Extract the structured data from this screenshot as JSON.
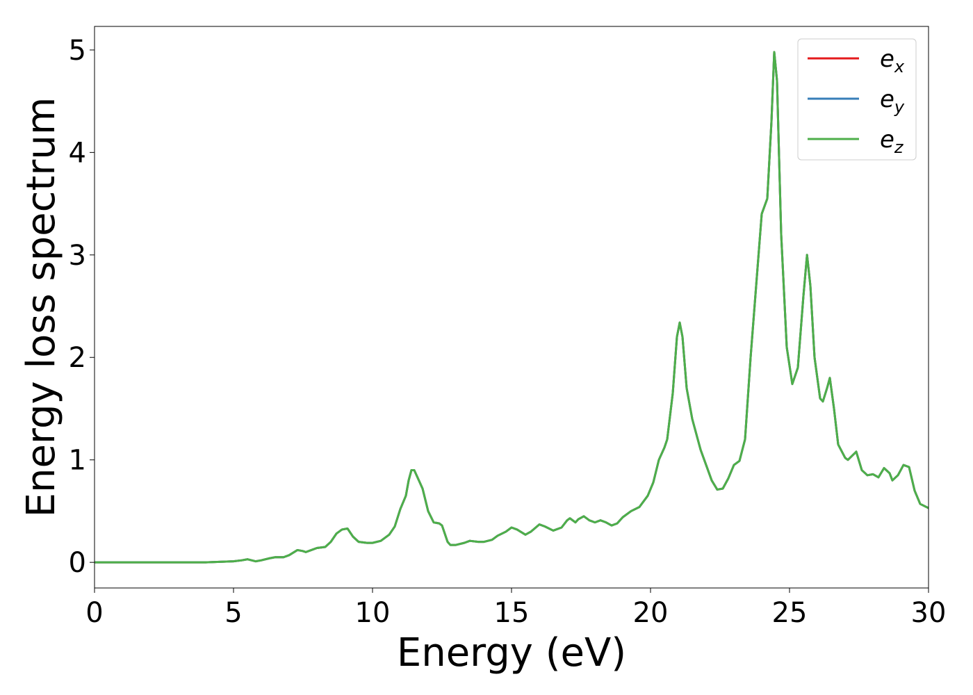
{
  "chart_data": {
    "type": "line",
    "xlabel": "Energy (eV)",
    "ylabel": "Energy loss spectrum",
    "xlim": [
      0,
      30
    ],
    "ylim": [
      -0.25,
      5.23
    ],
    "xticks": [
      0,
      5,
      10,
      15,
      20,
      25,
      30
    ],
    "yticks": [
      0,
      1,
      2,
      3,
      4,
      5
    ],
    "grid": false,
    "legend": "upper right",
    "x": [
      0,
      1,
      2,
      3,
      4,
      5,
      5.3,
      5.5,
      5.8,
      6.0,
      6.3,
      6.5,
      6.8,
      7.0,
      7.3,
      7.5,
      7.6,
      7.8,
      8.0,
      8.3,
      8.5,
      8.7,
      8.9,
      9.1,
      9.3,
      9.5,
      9.8,
      10.0,
      10.3,
      10.6,
      10.8,
      11.0,
      11.2,
      11.3,
      11.4,
      11.5,
      11.6,
      11.8,
      12.0,
      12.2,
      12.4,
      12.5,
      12.7,
      12.8,
      13.0,
      13.3,
      13.5,
      13.8,
      14.0,
      14.3,
      14.5,
      14.8,
      15.0,
      15.2,
      15.5,
      15.7,
      16.0,
      16.2,
      16.5,
      16.8,
      17.0,
      17.1,
      17.3,
      17.4,
      17.6,
      17.8,
      18.0,
      18.2,
      18.4,
      18.6,
      18.8,
      19.0,
      19.3,
      19.6,
      19.9,
      20.1,
      20.3,
      20.5,
      20.6,
      20.8,
      20.95,
      21.05,
      21.15,
      21.3,
      21.5,
      21.8,
      22.0,
      22.2,
      22.4,
      22.6,
      22.8,
      23.0,
      23.2,
      23.4,
      23.6,
      23.8,
      24.0,
      24.2,
      24.35,
      24.45,
      24.55,
      24.7,
      24.9,
      25.1,
      25.3,
      25.5,
      25.63,
      25.75,
      25.9,
      26.1,
      26.2,
      26.35,
      26.45,
      26.6,
      26.75,
      27.0,
      27.1,
      27.4,
      27.6,
      27.8,
      28.0,
      28.2,
      28.4,
      28.6,
      28.7,
      28.9,
      29.1,
      29.3,
      29.5,
      29.7,
      30.0
    ],
    "series": [
      {
        "name": "ex",
        "color": "#e41a1c",
        "values": [
          0,
          0,
          0,
          0,
          0,
          0.01,
          0.02,
          0.03,
          0.01,
          0.02,
          0.04,
          0.05,
          0.05,
          0.07,
          0.12,
          0.11,
          0.1,
          0.12,
          0.14,
          0.15,
          0.2,
          0.28,
          0.32,
          0.33,
          0.25,
          0.2,
          0.19,
          0.19,
          0.21,
          0.27,
          0.35,
          0.52,
          0.65,
          0.8,
          0.9,
          0.9,
          0.84,
          0.72,
          0.5,
          0.39,
          0.38,
          0.36,
          0.2,
          0.17,
          0.17,
          0.19,
          0.21,
          0.2,
          0.2,
          0.22,
          0.26,
          0.3,
          0.34,
          0.32,
          0.27,
          0.3,
          0.37,
          0.35,
          0.31,
          0.34,
          0.41,
          0.43,
          0.39,
          0.42,
          0.45,
          0.41,
          0.39,
          0.41,
          0.39,
          0.36,
          0.38,
          0.44,
          0.5,
          0.54,
          0.65,
          0.78,
          1.0,
          1.12,
          1.2,
          1.65,
          2.2,
          2.34,
          2.2,
          1.7,
          1.4,
          1.1,
          0.95,
          0.8,
          0.71,
          0.72,
          0.82,
          0.95,
          0.99,
          1.2,
          2.0,
          2.7,
          3.4,
          3.55,
          4.3,
          4.98,
          4.7,
          3.2,
          2.1,
          1.74,
          1.9,
          2.6,
          3.0,
          2.7,
          2.0,
          1.6,
          1.57,
          1.7,
          1.8,
          1.5,
          1.15,
          1.02,
          1.0,
          1.08,
          0.9,
          0.85,
          0.86,
          0.83,
          0.92,
          0.87,
          0.8,
          0.85,
          0.95,
          0.93,
          0.7,
          0.57,
          0.53
        ]
      },
      {
        "name": "ey",
        "color": "#377eb8",
        "values": [
          0,
          0,
          0,
          0,
          0,
          0.01,
          0.02,
          0.03,
          0.01,
          0.02,
          0.04,
          0.05,
          0.05,
          0.07,
          0.12,
          0.11,
          0.1,
          0.12,
          0.14,
          0.15,
          0.2,
          0.28,
          0.32,
          0.33,
          0.25,
          0.2,
          0.19,
          0.19,
          0.21,
          0.27,
          0.35,
          0.52,
          0.65,
          0.8,
          0.9,
          0.9,
          0.84,
          0.72,
          0.5,
          0.39,
          0.38,
          0.36,
          0.2,
          0.17,
          0.17,
          0.19,
          0.21,
          0.2,
          0.2,
          0.22,
          0.26,
          0.3,
          0.34,
          0.32,
          0.27,
          0.3,
          0.37,
          0.35,
          0.31,
          0.34,
          0.41,
          0.43,
          0.39,
          0.42,
          0.45,
          0.41,
          0.39,
          0.41,
          0.39,
          0.36,
          0.38,
          0.44,
          0.5,
          0.54,
          0.65,
          0.78,
          1.0,
          1.12,
          1.2,
          1.65,
          2.2,
          2.34,
          2.2,
          1.7,
          1.4,
          1.1,
          0.95,
          0.8,
          0.71,
          0.72,
          0.82,
          0.95,
          0.99,
          1.2,
          2.0,
          2.7,
          3.4,
          3.55,
          4.3,
          4.98,
          4.7,
          3.2,
          2.1,
          1.74,
          1.9,
          2.6,
          3.0,
          2.7,
          2.0,
          1.6,
          1.57,
          1.7,
          1.8,
          1.5,
          1.15,
          1.02,
          1.0,
          1.08,
          0.9,
          0.85,
          0.86,
          0.83,
          0.92,
          0.87,
          0.8,
          0.85,
          0.95,
          0.93,
          0.7,
          0.57,
          0.53
        ]
      },
      {
        "name": "ez",
        "color": "#4daf4a",
        "values": [
          0,
          0,
          0,
          0,
          0,
          0.01,
          0.02,
          0.03,
          0.01,
          0.02,
          0.04,
          0.05,
          0.05,
          0.07,
          0.12,
          0.11,
          0.1,
          0.12,
          0.14,
          0.15,
          0.2,
          0.28,
          0.32,
          0.33,
          0.25,
          0.2,
          0.19,
          0.19,
          0.21,
          0.27,
          0.35,
          0.52,
          0.65,
          0.8,
          0.9,
          0.9,
          0.84,
          0.72,
          0.5,
          0.39,
          0.38,
          0.36,
          0.2,
          0.17,
          0.17,
          0.19,
          0.21,
          0.2,
          0.2,
          0.22,
          0.26,
          0.3,
          0.34,
          0.32,
          0.27,
          0.3,
          0.37,
          0.35,
          0.31,
          0.34,
          0.41,
          0.43,
          0.39,
          0.42,
          0.45,
          0.41,
          0.39,
          0.41,
          0.39,
          0.36,
          0.38,
          0.44,
          0.5,
          0.54,
          0.65,
          0.78,
          1.0,
          1.12,
          1.2,
          1.65,
          2.2,
          2.34,
          2.2,
          1.7,
          1.4,
          1.1,
          0.95,
          0.8,
          0.71,
          0.72,
          0.82,
          0.95,
          0.99,
          1.2,
          2.0,
          2.7,
          3.4,
          3.55,
          4.3,
          4.98,
          4.7,
          3.2,
          2.1,
          1.74,
          1.9,
          2.6,
          3.0,
          2.7,
          2.0,
          1.6,
          1.57,
          1.7,
          1.8,
          1.5,
          1.15,
          1.02,
          1.0,
          1.08,
          0.9,
          0.85,
          0.86,
          0.83,
          0.92,
          0.87,
          0.8,
          0.85,
          0.95,
          0.93,
          0.7,
          0.57,
          0.53
        ]
      }
    ]
  }
}
